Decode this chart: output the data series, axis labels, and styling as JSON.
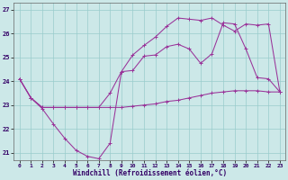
{
  "xlabel": "Windchill (Refroidissement éolien,°C)",
  "bg_color": "#cce8e8",
  "grid_color": "#99cccc",
  "line_color": "#993399",
  "xlim": [
    -0.5,
    23.5
  ],
  "ylim": [
    20.7,
    27.3
  ],
  "xticks": [
    0,
    1,
    2,
    3,
    4,
    5,
    6,
    7,
    8,
    9,
    10,
    11,
    12,
    13,
    14,
    15,
    16,
    17,
    18,
    19,
    20,
    21,
    22,
    23
  ],
  "yticks": [
    21,
    22,
    23,
    24,
    25,
    26,
    27
  ],
  "line1_x": [
    0,
    1,
    2,
    3,
    4,
    5,
    6,
    7,
    8,
    9,
    10,
    11,
    12,
    13,
    14,
    15,
    16,
    17,
    18,
    19,
    20,
    21,
    22,
    23
  ],
  "line1_y": [
    24.1,
    23.3,
    22.85,
    22.2,
    21.6,
    21.1,
    20.85,
    20.75,
    21.4,
    24.4,
    24.45,
    25.05,
    25.1,
    25.45,
    25.55,
    25.35,
    24.75,
    25.15,
    26.45,
    26.4,
    25.35,
    24.15,
    24.1,
    23.55
  ],
  "line2_x": [
    0,
    1,
    2,
    3,
    4,
    5,
    6,
    7,
    8,
    9,
    10,
    11,
    12,
    13,
    14,
    15,
    16,
    17,
    18,
    19,
    20,
    21,
    22,
    23
  ],
  "line2_y": [
    24.1,
    23.3,
    22.9,
    22.9,
    22.9,
    22.9,
    22.9,
    22.9,
    23.5,
    24.4,
    25.1,
    25.5,
    25.85,
    26.3,
    26.65,
    26.6,
    26.55,
    26.65,
    26.35,
    26.1,
    26.4,
    26.35,
    26.4,
    23.55
  ],
  "line3_x": [
    0,
    1,
    2,
    3,
    4,
    5,
    6,
    7,
    8,
    9,
    10,
    11,
    12,
    13,
    14,
    15,
    16,
    17,
    18,
    19,
    20,
    21,
    22,
    23
  ],
  "line3_y": [
    24.1,
    23.3,
    22.9,
    22.9,
    22.9,
    22.9,
    22.9,
    22.9,
    22.9,
    22.9,
    22.95,
    23.0,
    23.05,
    23.15,
    23.2,
    23.3,
    23.4,
    23.5,
    23.55,
    23.6,
    23.6,
    23.6,
    23.55,
    23.55
  ]
}
